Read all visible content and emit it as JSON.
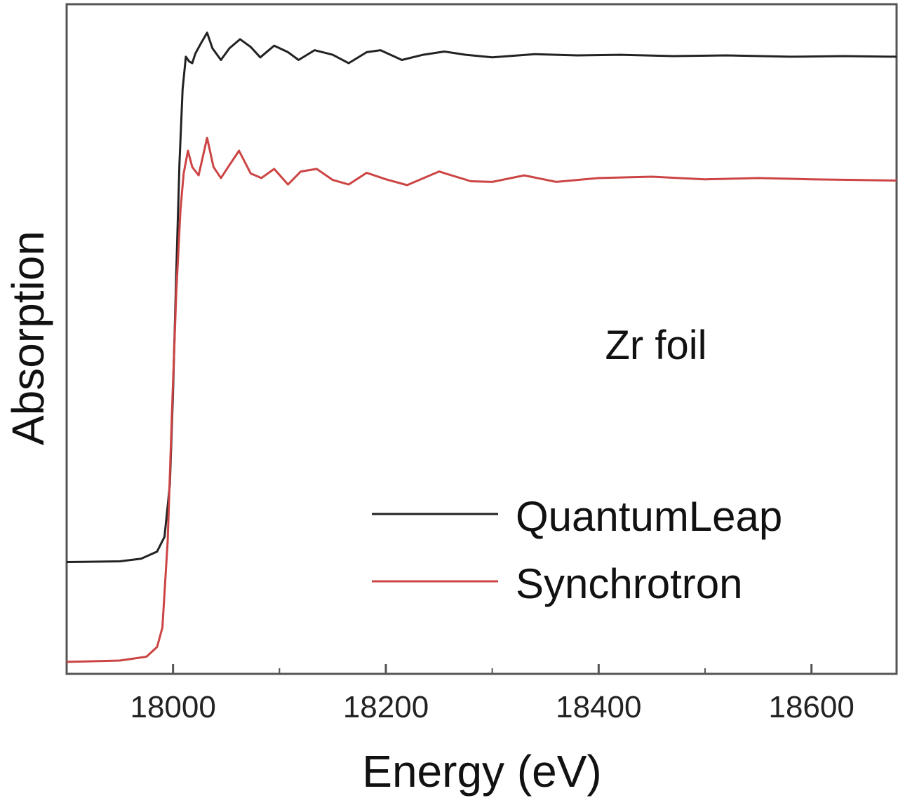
{
  "chart_data": {
    "type": "line",
    "xlabel": "Energy (eV)",
    "ylabel": "Absorption",
    "annotation": "Zr foil",
    "xlim": [
      17900,
      18680
    ],
    "ylim": [
      0,
      1
    ],
    "x_ticks_major": [
      18000,
      18200,
      18400,
      18600
    ],
    "x_tick_labels": [
      "18000",
      "18200",
      "18400",
      "18600"
    ],
    "x_ticks_minor": [
      18100,
      18300,
      18500
    ],
    "legend_position": "bottom-right",
    "series": [
      {
        "name": "QuantumLeap",
        "color": "#222222",
        "points": [
          [
            17900,
            0.166
          ],
          [
            17950,
            0.167
          ],
          [
            17970,
            0.171
          ],
          [
            17985,
            0.182
          ],
          [
            17992,
            0.205
          ],
          [
            17997,
            0.285
          ],
          [
            18000,
            0.43
          ],
          [
            18003,
            0.61
          ],
          [
            18006,
            0.78
          ],
          [
            18009,
            0.895
          ],
          [
            18012,
            0.945
          ],
          [
            18015,
            0.938
          ],
          [
            18018,
            0.935
          ],
          [
            18021,
            0.95
          ],
          [
            18026,
            0.965
          ],
          [
            18032,
            0.982
          ],
          [
            18037,
            0.958
          ],
          [
            18045,
            0.94
          ],
          [
            18053,
            0.958
          ],
          [
            18063,
            0.972
          ],
          [
            18073,
            0.96
          ],
          [
            18082,
            0.944
          ],
          [
            18095,
            0.962
          ],
          [
            18108,
            0.952
          ],
          [
            18118,
            0.94
          ],
          [
            18133,
            0.955
          ],
          [
            18150,
            0.948
          ],
          [
            18165,
            0.935
          ],
          [
            18182,
            0.952
          ],
          [
            18195,
            0.955
          ],
          [
            18215,
            0.94
          ],
          [
            18235,
            0.948
          ],
          [
            18255,
            0.953
          ],
          [
            18275,
            0.948
          ],
          [
            18300,
            0.944
          ],
          [
            18340,
            0.949
          ],
          [
            18380,
            0.947
          ],
          [
            18420,
            0.948
          ],
          [
            18470,
            0.946
          ],
          [
            18520,
            0.947
          ],
          [
            18580,
            0.945
          ],
          [
            18630,
            0.946
          ],
          [
            18680,
            0.945
          ]
        ]
      },
      {
        "name": "Synchrotron",
        "color": "#cc4444",
        "points": [
          [
            17900,
            0.012
          ],
          [
            17950,
            0.014
          ],
          [
            17975,
            0.02
          ],
          [
            17985,
            0.035
          ],
          [
            17990,
            0.065
          ],
          [
            17995,
            0.2
          ],
          [
            17999,
            0.4
          ],
          [
            18003,
            0.58
          ],
          [
            18007,
            0.71
          ],
          [
            18010,
            0.765
          ],
          [
            18014,
            0.8
          ],
          [
            18018,
            0.775
          ],
          [
            18024,
            0.762
          ],
          [
            18032,
            0.82
          ],
          [
            18038,
            0.775
          ],
          [
            18045,
            0.758
          ],
          [
            18053,
            0.778
          ],
          [
            18062,
            0.8
          ],
          [
            18073,
            0.765
          ],
          [
            18083,
            0.758
          ],
          [
            18095,
            0.772
          ],
          [
            18108,
            0.748
          ],
          [
            18120,
            0.768
          ],
          [
            18135,
            0.772
          ],
          [
            18150,
            0.755
          ],
          [
            18165,
            0.748
          ],
          [
            18182,
            0.766
          ],
          [
            18200,
            0.756
          ],
          [
            18220,
            0.747
          ],
          [
            18250,
            0.768
          ],
          [
            18280,
            0.753
          ],
          [
            18300,
            0.752
          ],
          [
            18330,
            0.762
          ],
          [
            18360,
            0.752
          ],
          [
            18400,
            0.758
          ],
          [
            18450,
            0.76
          ],
          [
            18500,
            0.756
          ],
          [
            18550,
            0.758
          ],
          [
            18600,
            0.756
          ],
          [
            18680,
            0.754
          ]
        ]
      }
    ]
  }
}
